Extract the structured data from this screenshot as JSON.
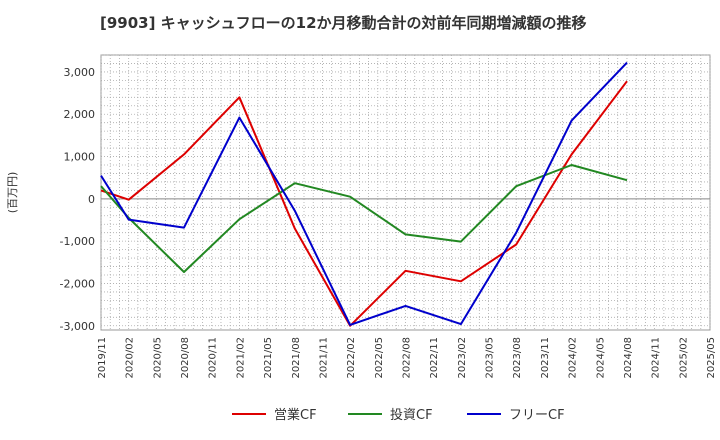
{
  "title": "[9903]  キャッシュフローの12か月移動合計の対前年同期増減額の推移",
  "chart_data": {
    "type": "line",
    "title": "[9903]  キャッシュフローの12か月移動合計の対前年同期増減額の推移",
    "ylabel": "(百万円)",
    "xlabel": "",
    "ylim": [
      -3100,
      3400
    ],
    "yticks": [
      3000,
      2000,
      1000,
      0,
      -1000,
      -2000,
      -3000
    ],
    "ytick_labels": [
      "3,000",
      "2,000",
      "1,000",
      "0",
      "-1,000",
      "-2,000",
      "-3,000"
    ],
    "x_ticks": [
      "2019/11",
      "2020/02",
      "2020/05",
      "2020/08",
      "2020/11",
      "2021/02",
      "2021/05",
      "2021/08",
      "2021/11",
      "2022/02",
      "2022/05",
      "2022/08",
      "2022/11",
      "2023/02",
      "2023/05",
      "2023/08",
      "2023/11",
      "2024/02",
      "2024/05",
      "2024/08",
      "2024/11",
      "2025/02",
      "2025/05"
    ],
    "grid": true,
    "legend_position": "bottom",
    "series": [
      {
        "name": "営業CF",
        "color": "#dd0000",
        "points": [
          [
            "2019/11",
            200
          ],
          [
            "2020/02",
            -20
          ],
          [
            "2020/08",
            1050
          ],
          [
            "2021/02",
            2400
          ],
          [
            "2021/08",
            -700
          ],
          [
            "2022/02",
            -3000
          ],
          [
            "2022/08",
            -1700
          ],
          [
            "2023/02",
            -1950
          ],
          [
            "2023/08",
            -1080
          ],
          [
            "2024/02",
            1050
          ],
          [
            "2024/08",
            2780
          ]
        ]
      },
      {
        "name": "投資CF",
        "color": "#228822",
        "points": [
          [
            "2019/11",
            300
          ],
          [
            "2020/02",
            -450
          ],
          [
            "2020/08",
            -1730
          ],
          [
            "2021/02",
            -480
          ],
          [
            "2021/08",
            370
          ],
          [
            "2022/02",
            50
          ],
          [
            "2022/08",
            -840
          ],
          [
            "2023/02",
            -1010
          ],
          [
            "2023/08",
            300
          ],
          [
            "2024/02",
            800
          ],
          [
            "2024/08",
            440
          ]
        ]
      },
      {
        "name": "フリーCF",
        "color": "#0000cc",
        "points": [
          [
            "2019/11",
            550
          ],
          [
            "2020/02",
            -490
          ],
          [
            "2020/08",
            -680
          ],
          [
            "2021/02",
            1920
          ],
          [
            "2021/08",
            -280
          ],
          [
            "2022/02",
            -2980
          ],
          [
            "2022/08",
            -2530
          ],
          [
            "2023/02",
            -2960
          ],
          [
            "2023/08",
            -800
          ],
          [
            "2024/02",
            1850
          ],
          [
            "2024/08",
            3220
          ]
        ]
      }
    ]
  }
}
